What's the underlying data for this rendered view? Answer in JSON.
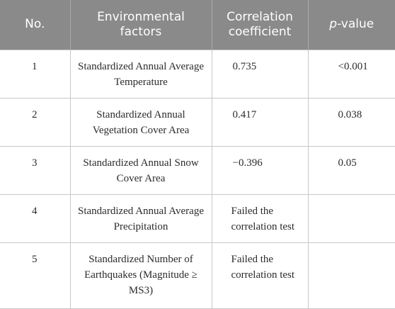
{
  "table": {
    "headers": {
      "no": "No.",
      "factors": "Environmental factors",
      "coefficient": "Correlation coefficient",
      "pvalue_prefix": "p",
      "pvalue_suffix": "-value"
    },
    "rows": [
      {
        "no": "1",
        "factor": "Standardized Annual Average Temperature",
        "coefficient": "0.735",
        "pvalue": "<0.001"
      },
      {
        "no": "2",
        "factor": "Standardized Annual Vegetation Cover Area",
        "coefficient": "0.417",
        "pvalue": "0.038"
      },
      {
        "no": "3",
        "factor": "Standardized Annual Snow Cover Area",
        "coefficient": "−0.396",
        "pvalue": "0.05"
      },
      {
        "no": "4",
        "factor": "Standardized Annual Average Precipitation",
        "coefficient": "Failed the correlation test",
        "pvalue": ""
      },
      {
        "no": "5",
        "factor": "Standardized Number of Earthquakes (Magnitude ≥ MS3)",
        "coefficient": "Failed the correlation test",
        "pvalue": ""
      }
    ]
  },
  "colors": {
    "header_background": "#8a8a8a",
    "header_text": "#ffffff",
    "cell_border": "#c8c8c8",
    "body_text": "#2b2b2b"
  }
}
